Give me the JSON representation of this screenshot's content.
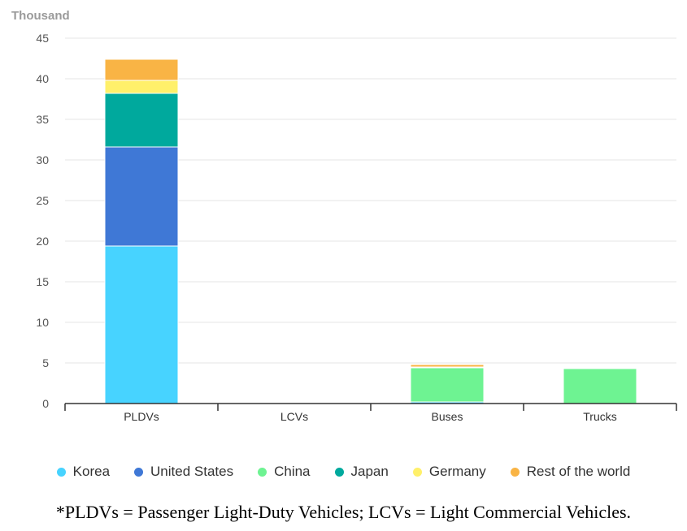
{
  "chart_data": {
    "type": "bar",
    "stacked": true,
    "unit_label": "Thousand",
    "categories": [
      "PLDVs",
      "LCVs",
      "Buses",
      "Trucks"
    ],
    "ylim": [
      0,
      45
    ],
    "yticks": [
      0,
      5,
      10,
      15,
      20,
      25,
      30,
      35,
      40,
      45
    ],
    "grid": true,
    "legend_position": "bottom",
    "series": [
      {
        "name": "Korea",
        "color": "#47d3ff",
        "values": [
          19.4,
          0,
          0.2,
          0
        ]
      },
      {
        "name": "United States",
        "color": "#3f78d6",
        "values": [
          12.2,
          0,
          0,
          0
        ]
      },
      {
        "name": "China",
        "color": "#6ef392",
        "values": [
          0,
          0,
          4.2,
          4.3
        ]
      },
      {
        "name": "Japan",
        "color": "#00a99d",
        "values": [
          6.6,
          0,
          0,
          0
        ]
      },
      {
        "name": "Germany",
        "color": "#fff06a",
        "values": [
          1.6,
          0,
          0.1,
          0
        ]
      },
      {
        "name": "Rest of the world",
        "color": "#f9b445",
        "values": [
          2.6,
          0,
          0.3,
          0
        ]
      }
    ]
  },
  "footnote": "*PLDVs = Passenger Light-Duty Vehicles; LCVs = Light Commercial Vehicles."
}
